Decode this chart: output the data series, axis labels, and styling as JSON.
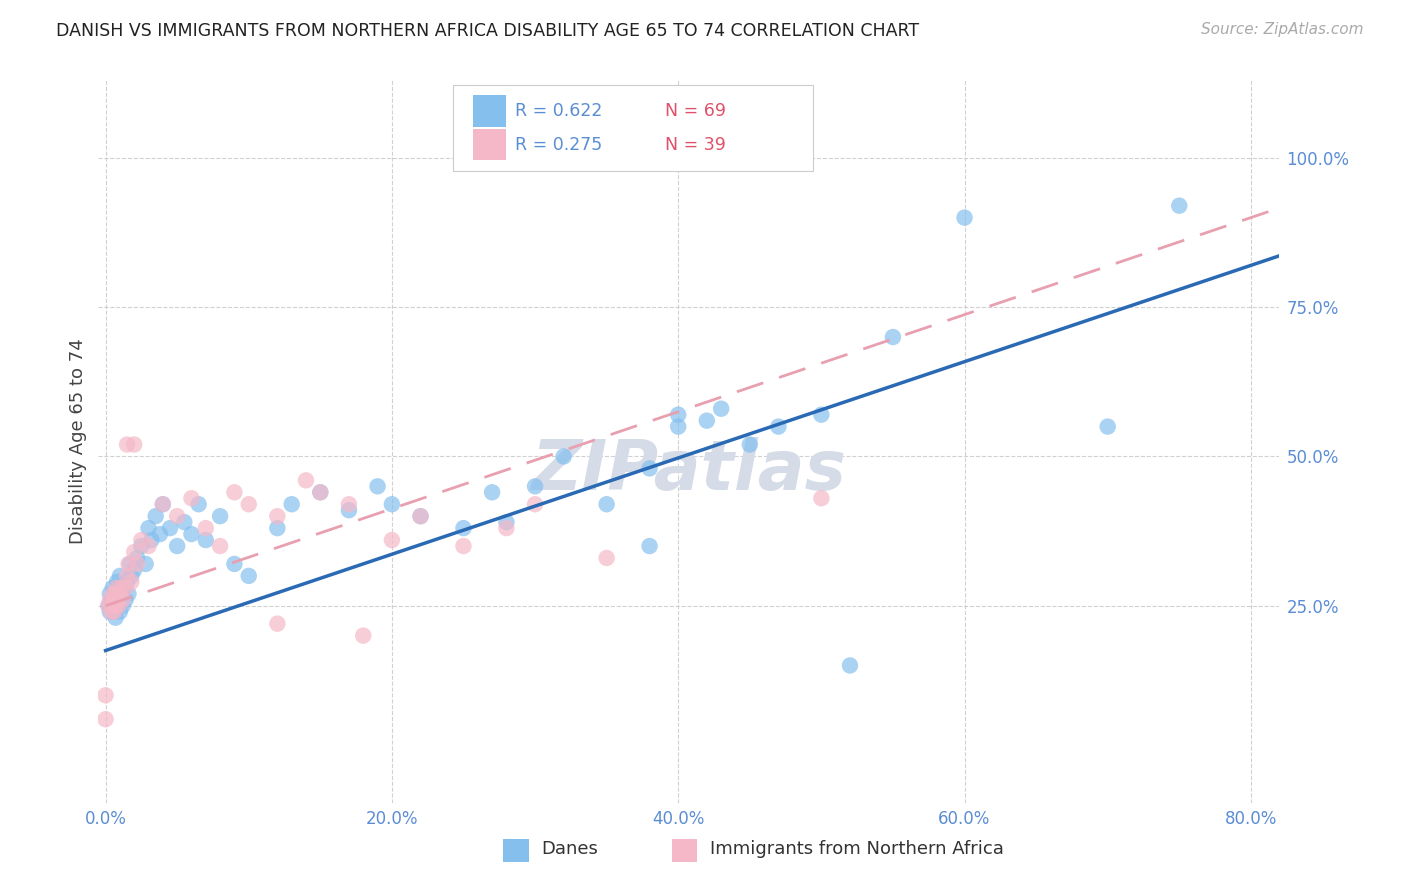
{
  "title": "DANISH VS IMMIGRANTS FROM NORTHERN AFRICA DISABILITY AGE 65 TO 74 CORRELATION CHART",
  "source": "Source: ZipAtlas.com",
  "ylabel": "Disability Age 65 to 74",
  "xlim": [
    -0.005,
    0.82
  ],
  "ylim": [
    -0.08,
    1.13
  ],
  "xtick_vals": [
    0.0,
    0.2,
    0.4,
    0.6,
    0.8
  ],
  "xtick_labels": [
    "0.0%",
    "20.0%",
    "40.0%",
    "60.0%",
    "80.0%"
  ],
  "ytick_vals": [
    0.25,
    0.5,
    0.75,
    1.0
  ],
  "ytick_labels": [
    "25.0%",
    "50.0%",
    "75.0%",
    "100.0%"
  ],
  "blue_color": "#85bfee",
  "pink_color": "#f5b8c8",
  "blue_line_color": "#2a6ab5",
  "pink_line_color": "#e8a0b0",
  "tick_color": "#5b8dd4",
  "watermark_color": "#d5dce8",
  "legend1_R": "R = 0.622",
  "legend1_N": "N = 69",
  "legend2_R": "R = 0.275",
  "legend2_N": "N = 39",
  "label_danes": "Danes",
  "label_immig": "Immigrants from Northern Africa",
  "blue_line_x0": 0.0,
  "blue_line_y0": 0.175,
  "blue_line_x1": 0.8,
  "blue_line_y1": 0.82,
  "pink_line_x0": 0.0,
  "pink_line_y0": 0.25,
  "pink_line_x1": 0.8,
  "pink_line_y1": 0.9,
  "danes_x": [
    0.002,
    0.003,
    0.003,
    0.004,
    0.005,
    0.005,
    0.006,
    0.006,
    0.007,
    0.007,
    0.008,
    0.008,
    0.009,
    0.009,
    0.01,
    0.01,
    0.011,
    0.012,
    0.013,
    0.014,
    0.015,
    0.016,
    0.017,
    0.018,
    0.02,
    0.022,
    0.025,
    0.028,
    0.03,
    0.032,
    0.035,
    0.038,
    0.04,
    0.045,
    0.05,
    0.055,
    0.06,
    0.065,
    0.07,
    0.08,
    0.09,
    0.1,
    0.12,
    0.13,
    0.15,
    0.17,
    0.19,
    0.2,
    0.22,
    0.25,
    0.27,
    0.28,
    0.3,
    0.32,
    0.35,
    0.38,
    0.4,
    0.43,
    0.45,
    0.47,
    0.5,
    0.52,
    0.55,
    0.4,
    0.42,
    0.38,
    0.6,
    0.7,
    0.75
  ],
  "danes_y": [
    0.25,
    0.24,
    0.27,
    0.26,
    0.25,
    0.28,
    0.26,
    0.24,
    0.27,
    0.23,
    0.29,
    0.25,
    0.28,
    0.26,
    0.3,
    0.24,
    0.27,
    0.25,
    0.28,
    0.26,
    0.29,
    0.27,
    0.32,
    0.3,
    0.31,
    0.33,
    0.35,
    0.32,
    0.38,
    0.36,
    0.4,
    0.37,
    0.42,
    0.38,
    0.35,
    0.39,
    0.37,
    0.42,
    0.36,
    0.4,
    0.32,
    0.3,
    0.38,
    0.42,
    0.44,
    0.41,
    0.45,
    0.42,
    0.4,
    0.38,
    0.44,
    0.39,
    0.45,
    0.5,
    0.42,
    0.48,
    0.55,
    0.58,
    0.52,
    0.55,
    0.57,
    0.15,
    0.7,
    0.57,
    0.56,
    0.35,
    0.9,
    0.55,
    0.92
  ],
  "immig_x": [
    0.002,
    0.003,
    0.004,
    0.005,
    0.005,
    0.006,
    0.006,
    0.007,
    0.007,
    0.008,
    0.008,
    0.009,
    0.01,
    0.011,
    0.012,
    0.014,
    0.015,
    0.016,
    0.018,
    0.02,
    0.022,
    0.025,
    0.03,
    0.04,
    0.05,
    0.07,
    0.09,
    0.1,
    0.12,
    0.14,
    0.15,
    0.17,
    0.2,
    0.22,
    0.25,
    0.28,
    0.3,
    0.35,
    0.5
  ],
  "immig_y": [
    0.25,
    0.26,
    0.24,
    0.27,
    0.25,
    0.26,
    0.24,
    0.27,
    0.25,
    0.26,
    0.28,
    0.25,
    0.27,
    0.28,
    0.26,
    0.28,
    0.3,
    0.32,
    0.29,
    0.34,
    0.32,
    0.36,
    0.35,
    0.42,
    0.4,
    0.38,
    0.44,
    0.42,
    0.4,
    0.46,
    0.44,
    0.42,
    0.36,
    0.4,
    0.35,
    0.38,
    0.42,
    0.33,
    0.43
  ],
  "immig_outlier_x": [
    0.015,
    0.02,
    0.06,
    0.08,
    0.12,
    0.18,
    0.0,
    0.0
  ],
  "immig_outlier_y": [
    0.52,
    0.52,
    0.43,
    0.35,
    0.22,
    0.2,
    0.06,
    0.1
  ]
}
